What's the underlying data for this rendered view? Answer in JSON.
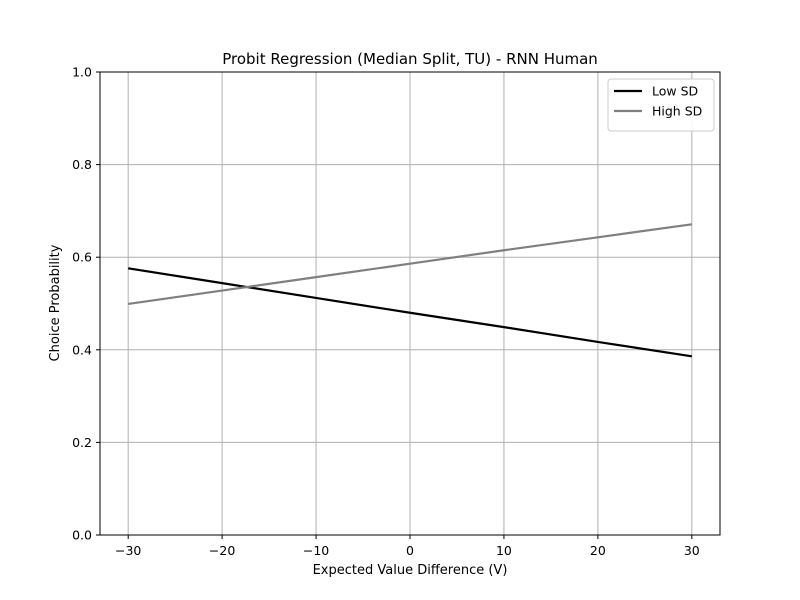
{
  "chart_data": {
    "type": "line",
    "title": "Probit Regression (Median Split, TU) - RNN Human",
    "xlabel": "Expected Value Difference (V)",
    "ylabel": "Choice Probability",
    "xlim": [
      -33,
      33
    ],
    "ylim": [
      0.0,
      1.0
    ],
    "xticks": [
      -30,
      -20,
      -10,
      0,
      10,
      20,
      30
    ],
    "xtick_labels": [
      "−30",
      "−20",
      "−10",
      "0",
      "10",
      "20",
      "30"
    ],
    "yticks": [
      0.0,
      0.2,
      0.4,
      0.6,
      0.8,
      1.0
    ],
    "ytick_labels": [
      "0.0",
      "0.2",
      "0.4",
      "0.6",
      "0.8",
      "1.0"
    ],
    "grid": true,
    "legend_position": "top-right",
    "series": [
      {
        "name": "Low SD",
        "color": "#000000",
        "x": [
          -30,
          -20,
          -10,
          0,
          10,
          20,
          30
        ],
        "y": [
          0.576,
          0.544,
          0.512,
          0.48,
          0.449,
          0.417,
          0.386
        ]
      },
      {
        "name": "High SD",
        "color": "#808080",
        "x": [
          -30,
          -20,
          -10,
          0,
          10,
          20,
          30
        ],
        "y": [
          0.499,
          0.528,
          0.557,
          0.586,
          0.615,
          0.643,
          0.671
        ]
      }
    ]
  }
}
